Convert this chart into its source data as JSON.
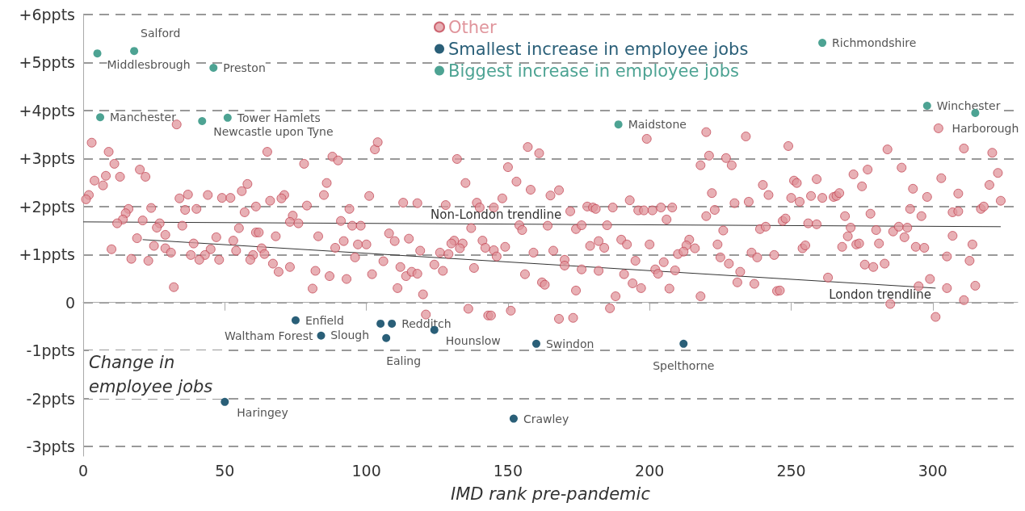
{
  "chart_data": {
    "type": "scatter",
    "xlabel": "IMD rank pre-pandemic",
    "ylabel": "Change in employee jobs",
    "xlim": [
      0,
      330
    ],
    "xticks": [
      0,
      50,
      100,
      150,
      200,
      250,
      300
    ],
    "ylim": [
      -3.2,
      6
    ],
    "yticks": [
      {
        "value": 6,
        "label": "+6ppts"
      },
      {
        "value": 5,
        "label": "+5ppts"
      },
      {
        "value": 4,
        "label": "+4ppts"
      },
      {
        "value": 3,
        "label": "+3ppts"
      },
      {
        "value": 2,
        "label": "+2ppts"
      },
      {
        "value": 1,
        "label": "+1ppts"
      },
      0,
      {
        "value": -1,
        "label": "-1ppts"
      },
      {
        "value": -2,
        "label": "-2ppts"
      },
      {
        "value": -3,
        "label": "-3ppts"
      }
    ],
    "grid": "y",
    "legend": "top",
    "marker": "circle",
    "series": [
      {
        "name": "Other",
        "color": "#e0959c",
        "x": [
          33,
          3,
          9,
          11,
          20,
          22,
          4,
          8,
          13,
          7,
          2,
          1,
          34,
          37,
          44,
          49,
          52,
          56,
          58,
          16,
          15,
          14,
          12,
          24,
          36,
          40,
          21,
          27,
          26,
          35,
          29,
          19,
          57,
          61,
          55,
          47,
          53,
          39,
          25,
          29,
          31,
          45,
          10,
          54,
          38,
          43,
          41,
          48,
          60,
          59,
          17,
          23,
          32,
          61,
          65,
          103,
          104,
          78,
          88,
          90,
          86,
          85,
          71,
          70,
          66,
          79,
          101,
          113,
          118,
          94,
          74,
          73,
          76,
          91,
          95,
          98,
          62,
          68,
          83,
          92,
          89,
          97,
          100,
          108,
          110,
          115,
          119,
          63,
          64,
          96,
          106,
          67,
          69,
          73,
          82,
          87,
          93,
          102,
          112,
          114,
          116,
          118,
          81,
          111,
          120,
          121,
          157,
          161,
          132,
          150,
          135,
          153,
          158,
          165,
          168,
          148,
          128,
          139,
          140,
          145,
          172,
          178,
          180,
          181,
          137,
          154,
          155,
          164,
          174,
          176,
          131,
          130,
          134,
          133,
          141,
          142,
          145,
          146,
          149,
          159,
          166,
          179,
          182,
          126,
          129,
          170,
          170,
          176,
          182,
          124,
          127,
          138,
          156,
          162,
          163,
          174,
          136,
          143,
          144,
          151,
          168,
          173,
          199,
          220,
          234,
          221,
          218,
          227,
          229,
          240,
          242,
          222,
          193,
          230,
          235,
          187,
          196,
          198,
          201,
          204,
          208,
          223,
          220,
          206,
          185,
          226,
          239,
          241,
          190,
          184,
          192,
          200,
          214,
          213,
          216,
          224,
          210,
          212,
          236,
          238,
          225,
          228,
          195,
          205,
          191,
          202,
          203,
          209,
          232,
          231,
          237,
          194,
          197,
          207,
          188,
          218,
          186,
          302,
          249,
          284,
          311,
          321,
          277,
          289,
          272,
          323,
          251,
          252,
          259,
          275,
          303,
          320,
          250,
          253,
          257,
          261,
          265,
          266,
          267,
          293,
          298,
          309,
          324,
          292,
          296,
          307,
          309,
          317,
          318,
          278,
          269,
          247,
          248,
          256,
          259,
          271,
          280,
          286,
          288,
          291,
          290,
          307,
          270,
          273,
          274,
          281,
          254,
          255,
          268,
          294,
          297,
          314,
          244,
          305,
          313,
          276,
          279,
          283,
          263,
          295,
          299,
          305,
          315,
          245,
          246,
          311,
          285,
          301
        ],
        "values": [
          3.71,
          3.33,
          3.14,
          2.89,
          2.77,
          2.62,
          2.54,
          2.64,
          2.62,
          2.44,
          2.24,
          2.15,
          2.17,
          2.25,
          2.24,
          2.18,
          2.18,
          2.32,
          2.47,
          1.95,
          1.86,
          1.73,
          1.65,
          1.97,
          1.93,
          1.95,
          1.71,
          1.65,
          1.56,
          1.6,
          1.41,
          1.34,
          1.88,
          2.0,
          1.55,
          1.36,
          1.29,
          1.23,
          1.18,
          1.13,
          1.04,
          1.11,
          1.11,
          1.08,
          0.99,
          0.99,
          0.89,
          0.89,
          0.99,
          0.89,
          0.91,
          0.87,
          0.32,
          1.46,
          3.14,
          3.19,
          3.34,
          2.89,
          3.04,
          2.96,
          2.49,
          2.24,
          2.24,
          2.17,
          2.12,
          2.02,
          2.22,
          2.08,
          2.07,
          1.95,
          1.81,
          1.68,
          1.65,
          1.7,
          1.6,
          1.6,
          1.46,
          1.38,
          1.38,
          1.28,
          1.14,
          1.21,
          1.21,
          1.44,
          1.28,
          1.33,
          1.08,
          1.13,
          1.01,
          0.94,
          0.86,
          0.81,
          0.64,
          0.74,
          0.66,
          0.55,
          0.49,
          0.59,
          0.74,
          0.55,
          0.64,
          0.6,
          0.29,
          0.3,
          0.17,
          -0.25,
          3.24,
          3.11,
          2.99,
          2.82,
          2.49,
          2.52,
          2.35,
          2.23,
          2.34,
          2.17,
          2.03,
          2.08,
          1.98,
          1.98,
          1.9,
          2.0,
          1.98,
          1.95,
          1.55,
          1.61,
          1.51,
          1.6,
          1.53,
          1.61,
          1.29,
          1.23,
          1.23,
          1.13,
          1.29,
          1.14,
          1.09,
          0.96,
          1.16,
          1.04,
          1.08,
          1.18,
          1.28,
          1.04,
          1.01,
          0.89,
          0.77,
          0.69,
          0.66,
          0.79,
          0.66,
          0.72,
          0.59,
          0.42,
          0.37,
          0.25,
          -0.13,
          -0.27,
          -0.27,
          -0.17,
          -0.34,
          -0.32,
          3.41,
          3.55,
          3.46,
          3.06,
          2.86,
          3.01,
          2.86,
          2.45,
          2.24,
          2.28,
          2.13,
          2.07,
          2.1,
          1.98,
          1.92,
          1.92,
          1.92,
          1.98,
          1.98,
          1.93,
          1.8,
          1.73,
          1.61,
          1.5,
          1.53,
          1.58,
          1.31,
          1.14,
          1.21,
          1.21,
          1.31,
          1.19,
          1.13,
          1.21,
          1.01,
          1.06,
          1.04,
          0.94,
          0.94,
          0.81,
          0.87,
          0.84,
          0.59,
          0.69,
          0.6,
          0.67,
          0.64,
          0.42,
          0.39,
          0.4,
          0.3,
          0.29,
          0.13,
          0.13,
          -0.12,
          3.63,
          3.26,
          3.19,
          3.21,
          3.12,
          2.77,
          2.81,
          2.67,
          2.7,
          2.54,
          2.49,
          2.57,
          2.42,
          2.59,
          2.45,
          2.18,
          2.1,
          2.22,
          2.18,
          2.2,
          2.22,
          2.28,
          2.37,
          2.2,
          2.27,
          2.12,
          1.95,
          1.8,
          1.88,
          1.9,
          1.95,
          2.0,
          1.85,
          1.8,
          1.7,
          1.75,
          1.65,
          1.63,
          1.56,
          1.51,
          1.48,
          1.58,
          1.56,
          1.36,
          1.39,
          1.38,
          1.21,
          1.23,
          1.23,
          1.13,
          1.19,
          1.16,
          1.16,
          1.14,
          1.21,
          0.99,
          0.96,
          0.87,
          0.79,
          0.74,
          0.81,
          0.52,
          0.34,
          0.49,
          0.3,
          0.35,
          0.24,
          0.25,
          0.05,
          -0.03,
          -0.3
        ]
      },
      {
        "name": "Smallest increase in employee jobs",
        "color": "#2a5f78",
        "x": [
          75,
          84,
          105,
          109,
          107,
          124,
          160,
          212,
          50,
          152
        ],
        "values": [
          -0.37,
          -0.69,
          -0.44,
          -0.44,
          -0.74,
          -0.57,
          -0.86,
          -0.86,
          -2.07,
          -2.42
        ]
      },
      {
        "name": "Biggest increase in employee jobs",
        "color": "#4da393",
        "x": [
          5,
          18,
          46,
          6,
          42,
          51,
          189,
          261,
          298,
          315
        ],
        "values": [
          5.19,
          5.24,
          4.89,
          3.86,
          3.78,
          3.85,
          3.71,
          5.41,
          4.1,
          3.95
        ]
      },
      {
        "name": "Non-London trendline",
        "type": "line",
        "marker": "none",
        "color": "#333333",
        "x": [
          0,
          324
        ],
        "values": [
          1.68,
          1.58
        ]
      },
      {
        "name": "London trendline",
        "type": "line",
        "marker": "none",
        "color": "#333333",
        "x": [
          21,
          301
        ],
        "values": [
          1.31,
          0.3
        ]
      }
    ],
    "annotations": [
      {
        "text": "Middlesbrough",
        "x": 5,
        "y": 5.19
      },
      {
        "text": "Salford",
        "x": 18,
        "y": 5.24
      },
      {
        "text": "Preston",
        "x": 46,
        "y": 4.89
      },
      {
        "text": "Manchester",
        "x": 6,
        "y": 3.86
      },
      {
        "text": "Newcastle upon Tyne",
        "x": 42,
        "y": 3.78
      },
      {
        "text": "Tower Hamlets",
        "x": 51,
        "y": 3.85
      },
      {
        "text": "Maidstone",
        "x": 189,
        "y": 3.71
      },
      {
        "text": "Richmondshire",
        "x": 261,
        "y": 5.41
      },
      {
        "text": "Winchester",
        "x": 298,
        "y": 4.1
      },
      {
        "text": "Harborough",
        "x": 315,
        "y": 3.95
      },
      {
        "text": "Enfield",
        "x": 75,
        "y": -0.37
      },
      {
        "text": "Waltham Forest",
        "x": 84,
        "y": -0.69
      },
      {
        "text": "Slough",
        "x": 105,
        "y": -0.44
      },
      {
        "text": "Redditch",
        "x": 109,
        "y": -0.44
      },
      {
        "text": "Ealing",
        "x": 107,
        "y": -0.74
      },
      {
        "text": "Hounslow",
        "x": 124,
        "y": -0.57
      },
      {
        "text": "Swindon",
        "x": 160,
        "y": -0.86
      },
      {
        "text": "Spelthorne",
        "x": 212,
        "y": -0.86
      },
      {
        "text": "Haringey",
        "x": 50,
        "y": -2.07
      },
      {
        "text": "Crawley",
        "x": 152,
        "y": -2.42
      }
    ]
  }
}
